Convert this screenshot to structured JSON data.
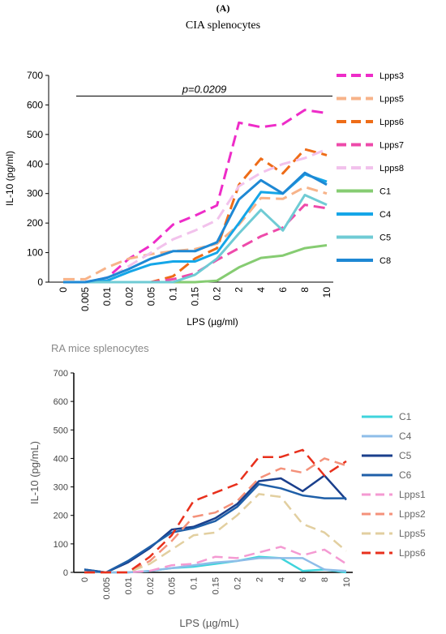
{
  "panel_label": "(A)",
  "panel_title": "CIA splenocytes",
  "chart_data": [
    {
      "type": "line",
      "title": "",
      "xlabel": "LPS (µg/ml)",
      "ylabel": "IL-10 (pg/ml)",
      "ylim": [
        0,
        700
      ],
      "yticks": [
        0,
        100,
        200,
        300,
        400,
        500,
        600,
        700
      ],
      "categories": [
        "0",
        "0.005",
        "0.01",
        "0.02",
        "0.05",
        "0.1",
        "0.15",
        "0.2",
        "2",
        "4",
        "6",
        "8",
        "10"
      ],
      "annotation": "p=0.0209",
      "annotation_line_y": 630,
      "grid": false,
      "legend": "right",
      "series": [
        {
          "name": "Lpps3",
          "color": "#ee2cc8",
          "dashed": true,
          "values": [
            0,
            0,
            15,
            80,
            125,
            195,
            225,
            260,
            540,
            525,
            535,
            583,
            572
          ]
        },
        {
          "name": "Lpps5",
          "color": "#f7b389",
          "dashed": true,
          "values": [
            10,
            10,
            50,
            80,
            95,
            105,
            112,
            130,
            195,
            285,
            282,
            322,
            300
          ]
        },
        {
          "name": "Lpps6",
          "color": "#ee6c18",
          "dashed": true,
          "values": [
            0,
            0,
            0,
            0,
            0,
            20,
            80,
            115,
            330,
            418,
            368,
            450,
            430
          ]
        },
        {
          "name": "Lpps7",
          "color": "#ee4aaa",
          "dashed": true,
          "values": [
            0,
            0,
            0,
            0,
            0,
            10,
            30,
            75,
            115,
            155,
            185,
            262,
            250
          ]
        },
        {
          "name": "Lpps8",
          "color": "#f2c2ec",
          "dashed": true,
          "values": [
            0,
            0,
            10,
            55,
            100,
            145,
            175,
            210,
            325,
            370,
            400,
            420,
            450
          ]
        },
        {
          "name": "C1",
          "color": "#86cc72",
          "dashed": false,
          "values": [
            0,
            0,
            0,
            0,
            0,
            0,
            0,
            5,
            50,
            82,
            90,
            115,
            125
          ]
        },
        {
          "name": "C4",
          "color": "#15a6e8",
          "dashed": false,
          "values": [
            0,
            0,
            5,
            35,
            60,
            70,
            70,
            100,
            200,
            305,
            300,
            365,
            340
          ]
        },
        {
          "name": "C5",
          "color": "#6fcbd4",
          "dashed": false,
          "values": [
            0,
            0,
            0,
            0,
            0,
            0,
            25,
            80,
            165,
            245,
            175,
            295,
            262
          ]
        },
        {
          "name": "C8",
          "color": "#1e88d4",
          "dashed": false,
          "values": [
            0,
            0,
            15,
            45,
            80,
            105,
            105,
            135,
            280,
            345,
            300,
            370,
            330
          ]
        }
      ]
    },
    {
      "type": "line",
      "title": "RA mice splenocytes",
      "xlabel": "LPS (µg/mL)",
      "ylabel": "IL-10 (pg/mL)",
      "ylim": [
        0,
        700
      ],
      "yticks": [
        0,
        100,
        200,
        300,
        400,
        500,
        600,
        700
      ],
      "categories": [
        "0",
        "0.005",
        "0.01",
        "0.02",
        "0.05",
        "0.1",
        "0.15",
        "0.2",
        "2",
        "4",
        "6",
        "8",
        "10"
      ],
      "grid": false,
      "legend": "right",
      "series": [
        {
          "name": "C1",
          "color": "#3fd4dc",
          "dashed": false,
          "values": [
            5,
            0,
            0,
            5,
            15,
            20,
            30,
            40,
            55,
            50,
            5,
            10,
            0
          ]
        },
        {
          "name": "C4",
          "color": "#8ebde8",
          "dashed": false,
          "values": [
            5,
            0,
            0,
            5,
            15,
            25,
            35,
            40,
            50,
            50,
            50,
            10,
            5
          ]
        },
        {
          "name": "C5",
          "color": "#1a3f8c",
          "dashed": false,
          "values": [
            10,
            0,
            35,
            85,
            150,
            160,
            190,
            240,
            320,
            330,
            285,
            340,
            255
          ]
        },
        {
          "name": "C6",
          "color": "#1f5fa8",
          "dashed": false,
          "values": [
            10,
            0,
            40,
            90,
            140,
            155,
            180,
            230,
            310,
            295,
            270,
            260,
            260
          ]
        },
        {
          "name": "Lpps1",
          "color": "#f49ad2",
          "dashed": true,
          "values": [
            0,
            0,
            0,
            5,
            25,
            30,
            55,
            50,
            70,
            90,
            60,
            80,
            30
          ]
        },
        {
          "name": "Lpps2",
          "color": "#f4917a",
          "dashed": true,
          "values": [
            0,
            0,
            0,
            40,
            110,
            195,
            210,
            250,
            330,
            365,
            350,
            400,
            375
          ]
        },
        {
          "name": "Lpps5",
          "color": "#e2cfa0",
          "dashed": true,
          "values": [
            0,
            0,
            0,
            30,
            80,
            130,
            140,
            200,
            275,
            265,
            170,
            140,
            75
          ]
        },
        {
          "name": "Lpps6",
          "color": "#e8301c",
          "dashed": true,
          "values": [
            0,
            0,
            0,
            55,
            130,
            250,
            280,
            310,
            405,
            405,
            430,
            340,
            390
          ]
        }
      ]
    }
  ]
}
